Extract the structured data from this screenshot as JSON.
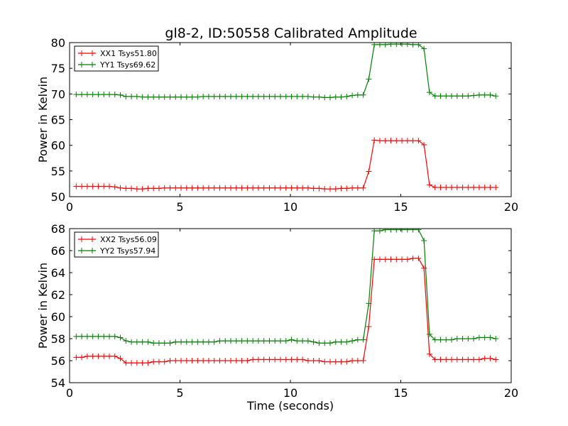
{
  "title": "gl8-2, ID:50558 Calibrated Amplitude",
  "colors": {
    "red": "#ff0000",
    "green": "#008000"
  },
  "chart_data": [
    {
      "type": "line",
      "title": "gl8-2, ID:50558 Calibrated Amplitude",
      "xlabel": "",
      "ylabel": "Power in Kelvin",
      "xlim": [
        0,
        20
      ],
      "ylim": [
        50,
        80
      ],
      "xticks": [
        0,
        5,
        10,
        15,
        20
      ],
      "yticks": [
        50,
        55,
        60,
        65,
        70,
        75,
        80
      ],
      "legend_position": "top-left",
      "x": [
        0.3,
        0.55,
        0.8,
        1.05,
        1.3,
        1.55,
        1.8,
        2.05,
        2.3,
        2.55,
        2.8,
        3.05,
        3.3,
        3.55,
        3.8,
        4.05,
        4.3,
        4.55,
        4.8,
        5.05,
        5.3,
        5.55,
        5.8,
        6.05,
        6.3,
        6.55,
        6.8,
        7.05,
        7.3,
        7.55,
        7.8,
        8.05,
        8.3,
        8.55,
        8.8,
        9.05,
        9.3,
        9.55,
        9.8,
        10.05,
        10.3,
        10.55,
        10.8,
        11.05,
        11.3,
        11.55,
        11.8,
        12.05,
        12.3,
        12.55,
        12.8,
        13.05,
        13.3,
        13.55,
        13.8,
        14.05,
        14.3,
        14.55,
        14.8,
        15.05,
        15.3,
        15.55,
        15.8,
        16.05,
        16.3,
        16.55,
        16.8,
        17.05,
        17.3,
        17.55,
        17.8,
        18.05,
        18.3,
        18.55,
        18.8,
        19.05,
        19.3
      ],
      "series": [
        {
          "name": "XX1 Tsys51.80",
          "color": "#ff0000",
          "values": [
            52.0,
            52.0,
            52.0,
            52.0,
            52.0,
            52.0,
            52.0,
            51.9,
            51.7,
            51.6,
            51.6,
            51.5,
            51.5,
            51.6,
            51.6,
            51.6,
            51.7,
            51.7,
            51.7,
            51.7,
            51.7,
            51.7,
            51.7,
            51.7,
            51.7,
            51.7,
            51.7,
            51.7,
            51.7,
            51.7,
            51.7,
            51.7,
            51.7,
            51.7,
            51.7,
            51.7,
            51.7,
            51.7,
            51.7,
            51.7,
            51.7,
            51.7,
            51.7,
            51.6,
            51.6,
            51.5,
            51.5,
            51.5,
            51.6,
            51.6,
            51.7,
            51.7,
            51.7,
            54.9,
            61.0,
            60.9,
            60.9,
            60.9,
            60.9,
            60.9,
            60.9,
            60.9,
            60.9,
            60.1,
            52.3,
            51.8,
            51.8,
            51.8,
            51.8,
            51.8,
            51.8,
            51.8,
            51.8,
            51.8,
            51.8,
            51.8,
            51.8
          ]
        },
        {
          "name": "YY1 Tsys69.62",
          "color": "#008000",
          "values": [
            69.9,
            69.9,
            69.9,
            69.9,
            69.9,
            69.9,
            69.9,
            69.9,
            69.8,
            69.5,
            69.5,
            69.5,
            69.4,
            69.4,
            69.4,
            69.4,
            69.4,
            69.4,
            69.4,
            69.4,
            69.4,
            69.4,
            69.4,
            69.5,
            69.5,
            69.5,
            69.5,
            69.5,
            69.5,
            69.5,
            69.5,
            69.5,
            69.5,
            69.5,
            69.5,
            69.5,
            69.5,
            69.5,
            69.5,
            69.5,
            69.5,
            69.5,
            69.5,
            69.4,
            69.4,
            69.3,
            69.3,
            69.4,
            69.4,
            69.5,
            69.7,
            69.8,
            69.8,
            72.9,
            79.6,
            79.6,
            79.6,
            79.7,
            79.7,
            79.7,
            79.7,
            79.6,
            79.6,
            78.8,
            70.3,
            69.6,
            69.6,
            69.6,
            69.6,
            69.6,
            69.6,
            69.6,
            69.7,
            69.8,
            69.8,
            69.8,
            69.6
          ]
        }
      ]
    },
    {
      "type": "line",
      "title": "",
      "xlabel": "Time (seconds)",
      "ylabel": "Power in Kelvin",
      "xlim": [
        0,
        20
      ],
      "ylim": [
        54,
        68
      ],
      "xticks": [
        0,
        5,
        10,
        15,
        20
      ],
      "yticks": [
        54,
        56,
        58,
        60,
        62,
        64,
        66,
        68
      ],
      "legend_position": "top-left",
      "x": [
        0.3,
        0.55,
        0.8,
        1.05,
        1.3,
        1.55,
        1.8,
        2.05,
        2.3,
        2.55,
        2.8,
        3.05,
        3.3,
        3.55,
        3.8,
        4.05,
        4.3,
        4.55,
        4.8,
        5.05,
        5.3,
        5.55,
        5.8,
        6.05,
        6.3,
        6.55,
        6.8,
        7.05,
        7.3,
        7.55,
        7.8,
        8.05,
        8.3,
        8.55,
        8.8,
        9.05,
        9.3,
        9.55,
        9.8,
        10.05,
        10.3,
        10.55,
        10.8,
        11.05,
        11.3,
        11.55,
        11.8,
        12.05,
        12.3,
        12.55,
        12.8,
        13.05,
        13.3,
        13.55,
        13.8,
        14.05,
        14.3,
        14.55,
        14.8,
        15.05,
        15.3,
        15.55,
        15.8,
        16.05,
        16.3,
        16.55,
        16.8,
        17.05,
        17.3,
        17.55,
        17.8,
        18.05,
        18.3,
        18.55,
        18.8,
        19.05,
        19.3
      ],
      "series": [
        {
          "name": "XX2 Tsys56.09",
          "color": "#ff0000",
          "values": [
            56.3,
            56.3,
            56.4,
            56.4,
            56.4,
            56.4,
            56.4,
            56.4,
            56.2,
            55.8,
            55.8,
            55.8,
            55.8,
            55.8,
            55.9,
            55.9,
            55.9,
            56.0,
            56.0,
            56.0,
            56.0,
            56.0,
            56.0,
            56.0,
            56.0,
            56.0,
            56.0,
            56.0,
            56.0,
            56.0,
            56.0,
            56.0,
            56.1,
            56.1,
            56.1,
            56.1,
            56.1,
            56.1,
            56.1,
            56.1,
            56.1,
            56.1,
            56.0,
            56.0,
            56.0,
            55.9,
            55.9,
            55.9,
            55.9,
            55.9,
            56.0,
            56.0,
            56.0,
            59.1,
            65.2,
            65.2,
            65.2,
            65.2,
            65.2,
            65.2,
            65.2,
            65.3,
            65.3,
            64.4,
            56.6,
            56.1,
            56.1,
            56.1,
            56.1,
            56.1,
            56.1,
            56.1,
            56.1,
            56.1,
            56.2,
            56.2,
            56.1
          ]
        },
        {
          "name": "YY2 Tsys57.94",
          "color": "#008000",
          "values": [
            58.2,
            58.2,
            58.2,
            58.2,
            58.2,
            58.2,
            58.2,
            58.2,
            58.1,
            57.8,
            57.7,
            57.7,
            57.7,
            57.7,
            57.6,
            57.6,
            57.6,
            57.6,
            57.7,
            57.7,
            57.7,
            57.7,
            57.7,
            57.7,
            57.7,
            57.7,
            57.8,
            57.8,
            57.8,
            57.8,
            57.8,
            57.8,
            57.8,
            57.8,
            57.8,
            57.8,
            57.8,
            57.8,
            57.8,
            57.9,
            57.8,
            57.8,
            57.8,
            57.7,
            57.6,
            57.6,
            57.6,
            57.7,
            57.7,
            57.7,
            57.8,
            57.9,
            57.9,
            61.2,
            67.8,
            67.8,
            67.9,
            67.9,
            67.9,
            67.9,
            67.9,
            67.9,
            67.9,
            66.9,
            58.4,
            57.9,
            57.9,
            57.9,
            57.9,
            58.0,
            58.0,
            58.0,
            58.0,
            58.1,
            58.1,
            58.1,
            58.0
          ]
        }
      ]
    }
  ]
}
